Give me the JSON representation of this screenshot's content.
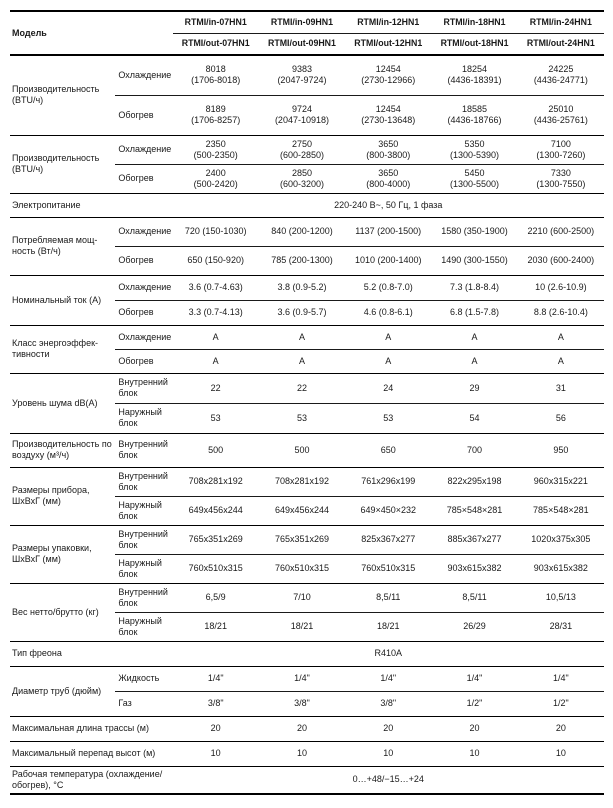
{
  "header": {
    "model_label": "Модель",
    "indoor_models": [
      "RTMI/in-07HN1",
      "RTMI/in-09HN1",
      "RTMI/in-12HN1",
      "RTMI/in-18HN1",
      "RTMI/in-24HN1"
    ],
    "outdoor_models": [
      "RTMI/out-07HN1",
      "RTMI/out-09HN1",
      "RTMI/out-12HN1",
      "RTMI/out-18HN1",
      "RTMI/out-24HN1"
    ]
  },
  "sections": [
    {
      "label": "Производительность (BTU/ч)",
      "rows": [
        {
          "sub": "Охлаждение",
          "values": [
            "8018\n(1706-8018)",
            "9383\n(2047-9724)",
            "12454\n(2730-12966)",
            "18254\n(4436-18391)",
            "24225\n(4436-24771)"
          ]
        },
        {
          "sub": "Обогрев",
          "values": [
            "8189\n(1706-8257)",
            "9724\n(2047-10918)",
            "12454\n(2730-13648)",
            "18585\n(4436-18766)",
            "25010\n(4436-25761)"
          ]
        }
      ]
    },
    {
      "label": "Производительность (BTU/ч)",
      "rows": [
        {
          "sub": "Охлаждение",
          "values": [
            "2350\n(500-2350)",
            "2750\n(600-2850)",
            "3650\n(800-3800)",
            "5350\n(1300-5390)",
            "7100\n(1300-7260)"
          ]
        },
        {
          "sub": "Обогрев",
          "values": [
            "2400\n(500-2420)",
            "2850\n(600-3200)",
            "3650\n(800-4000)",
            "5450\n(1300-5500)",
            "7330\n(1300-7550)"
          ]
        }
      ]
    },
    {
      "label": "Электропитание",
      "span_value": "220-240 В~, 50 Гц, 1 фаза"
    },
    {
      "label": "Потребляемая мощ-ность (Вт/ч)",
      "rows": [
        {
          "sub": "Охлаждение",
          "values": [
            "720 (150-1030)",
            "840 (200-1200)",
            "1137 (200-1500)",
            "1580 (350-1900)",
            "2210 (600-2500)"
          ]
        },
        {
          "sub": "Обогрев",
          "values": [
            "650 (150-920)",
            "785 (200-1300)",
            "1010 (200-1400)",
            "1490 (300-1550)",
            "2030 (600-2400)"
          ]
        }
      ]
    },
    {
      "label": "Номинальный ток (А)",
      "rows": [
        {
          "sub": "Охлаждение",
          "values": [
            "3.6 (0.7-4.63)",
            "3.8 (0.9-5.2)",
            "5.2 (0.8-7.0)",
            "7.3 (1.8-8.4)",
            "10 (2.6-10.9)"
          ]
        },
        {
          "sub": "Обогрев",
          "values": [
            "3.3 (0.7-4.13)",
            "3.6 (0.9-5.7)",
            "4.6 (0.8-6.1)",
            "6.8 (1.5-7.8)",
            "8.8 (2.6-10.4)"
          ]
        }
      ]
    },
    {
      "label": "Класс энергоэффек-тивности",
      "rows": [
        {
          "sub": "Охлаждение",
          "values": [
            "А",
            "А",
            "А",
            "А",
            "А"
          ]
        },
        {
          "sub": "Обогрев",
          "values": [
            "А",
            "А",
            "А",
            "А",
            "А"
          ]
        }
      ]
    },
    {
      "label": "Уровень шума dB(A)",
      "rows": [
        {
          "sub": "Внутренний блок",
          "values": [
            "22",
            "22",
            "24",
            "29",
            "31"
          ]
        },
        {
          "sub": "Наружный блок",
          "values": [
            "53",
            "53",
            "53",
            "54",
            "56"
          ]
        }
      ]
    },
    {
      "label": "Производительность по воздуху (м³/ч)",
      "rows": [
        {
          "sub": "Внутренний блок",
          "values": [
            "500",
            "500",
            "650",
            "700",
            "950"
          ]
        }
      ]
    },
    {
      "label": "Размеры прибора, ШхВхГ (мм)",
      "rows": [
        {
          "sub": "Внутренний блок",
          "values": [
            "708x281x192",
            "708x281x192",
            "761x296x199",
            "822x295x198",
            "960x315x221"
          ]
        },
        {
          "sub": "Наружный блок",
          "values": [
            "649x456x244",
            "649x456x244",
            "649×450×232",
            "785×548×281",
            "785×548×281"
          ]
        }
      ]
    },
    {
      "label": "Размеры упаковки, ШхВхГ (мм)",
      "rows": [
        {
          "sub": "Внутренний блок",
          "values": [
            "765x351x269",
            "765x351x269",
            "825x367x277",
            "885x367x277",
            "1020x375x305"
          ]
        },
        {
          "sub": "Наружный блок",
          "values": [
            "760x510x315",
            "760x510x315",
            "760x510x315",
            "903x615x382",
            "903x615x382"
          ]
        }
      ]
    },
    {
      "label": "Вес нетто/брутто (кг)",
      "rows": [
        {
          "sub": "Внутренний блок",
          "values": [
            "6,5/9",
            "7/10",
            "8,5/11",
            "8,5/11",
            "10,5/13"
          ]
        },
        {
          "sub": "Наружный блок",
          "values": [
            "18/21",
            "18/21",
            "18/21",
            "26/29",
            "28/31"
          ]
        }
      ]
    },
    {
      "label": "Тип фреона",
      "span_value": "R410A"
    },
    {
      "label": "Диаметр труб (дюйм)",
      "rows": [
        {
          "sub": "Жидкость",
          "values": [
            "1/4\"",
            "1/4\"",
            "1/4\"",
            "1/4\"",
            "1/4\""
          ]
        },
        {
          "sub": "Газ",
          "values": [
            "3/8\"",
            "3/8\"",
            "3/8\"",
            "1/2\"",
            "1/2\""
          ]
        }
      ]
    },
    {
      "label": "Максимальная длина трассы (м)",
      "values": [
        "20",
        "20",
        "20",
        "20",
        "20"
      ]
    },
    {
      "label": "Максимальный перепад высот (м)",
      "values": [
        "10",
        "10",
        "10",
        "10",
        "10"
      ]
    },
    {
      "label": "Рабочая температура (охлаждение/обогрев), °С",
      "span_value": "0…+48/−15…+24"
    }
  ]
}
